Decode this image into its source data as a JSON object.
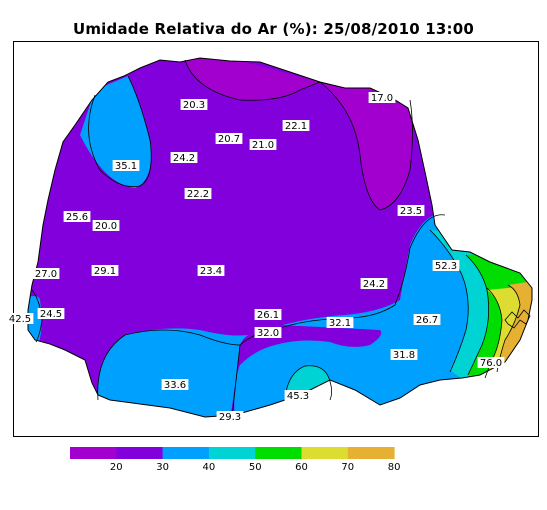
{
  "title": "Umidade Relativa do Ar (%): 25/08/2010 13:00",
  "colors": {
    "c10_20": "#a100cf",
    "c20_30": "#8200dc",
    "c30_40": "#00a0ff",
    "c40_50": "#00d3d3",
    "c50_60": "#00dd00",
    "c60_70": "#dddd31",
    "c70_80": "#e6b032"
  },
  "legend": {
    "ticks": [
      "20",
      "30",
      "40",
      "50",
      "60",
      "70",
      "80"
    ]
  },
  "stations": [
    {
      "label": "20.3"
    },
    {
      "label": "17.0"
    },
    {
      "label": "22.1"
    },
    {
      "label": "20.7"
    },
    {
      "label": "21.0"
    },
    {
      "label": "24.2"
    },
    {
      "label": "35.1"
    },
    {
      "label": "22.2"
    },
    {
      "label": "23.5"
    },
    {
      "label": "25.6"
    },
    {
      "label": "20.0"
    },
    {
      "label": "52.3"
    },
    {
      "label": "27.0"
    },
    {
      "label": "29.1"
    },
    {
      "label": "23.4"
    },
    {
      "label": "24.2"
    },
    {
      "label": "42.5"
    },
    {
      "label": "24.5"
    },
    {
      "label": "26.1"
    },
    {
      "label": "32.1"
    },
    {
      "label": "26.7"
    },
    {
      "label": "32.0"
    },
    {
      "label": "31.8"
    },
    {
      "label": "76.0"
    },
    {
      "label": "33.6"
    },
    {
      "label": "45.3"
    },
    {
      "label": "29.3"
    }
  ]
}
